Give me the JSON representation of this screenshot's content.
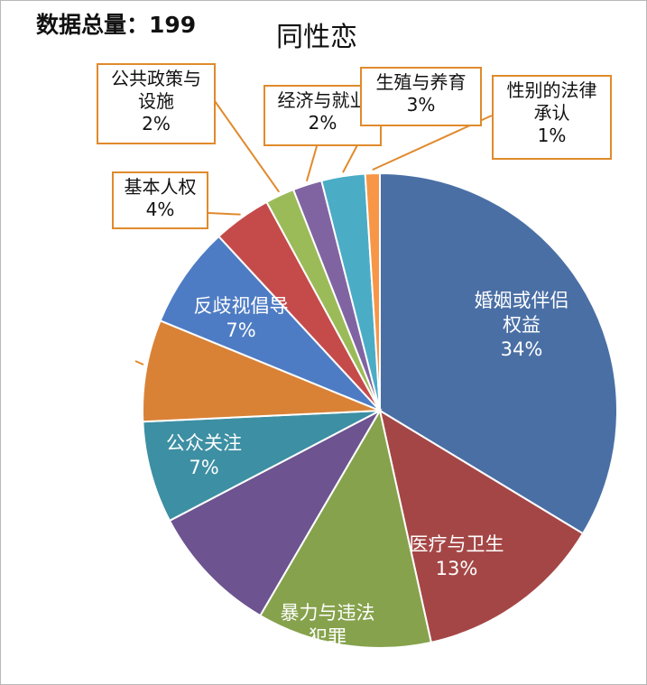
{
  "header": {
    "total": "数据总量：199",
    "title": "同性恋"
  },
  "chart_data": {
    "type": "pie",
    "title": "同性恋",
    "slices": [
      {
        "label": "婚姻或伴侣权益",
        "label_lines": [
          "婚姻或伴侣",
          "权益"
        ],
        "value": 34,
        "pct": "34%",
        "color": "#4a6fa5"
      },
      {
        "label": "医疗与卫生",
        "label_lines": [
          "医疗与卫生"
        ],
        "value": 13,
        "pct": "13%",
        "color": "#a54646"
      },
      {
        "label": "暴力与违法犯罪",
        "label_lines": [
          "暴力与违法",
          "犯罪"
        ],
        "value": 12,
        "pct": "",
        "color": "#86a24c"
      },
      {
        "label": "",
        "label_lines": [],
        "value": 9,
        "pct": "",
        "color": "#6d538f"
      },
      {
        "label": "公众关注",
        "label_lines": [
          "公众关注"
        ],
        "value": 7,
        "pct": "7%",
        "color": "#3d8fa3"
      },
      {
        "label": "",
        "label_lines": [],
        "value": 7,
        "pct": "",
        "color": "#d98236"
      },
      {
        "label": "反歧视倡导",
        "label_lines": [
          "反歧视倡导"
        ],
        "value": 7,
        "pct": "7%",
        "color": "#4e7cc4"
      },
      {
        "label": "基本人权",
        "label_lines": [
          "基本人权"
        ],
        "value": 4,
        "pct": "4%",
        "color": "#c54b4b"
      },
      {
        "label": "公共政策与设施",
        "label_lines": [
          "公共政策与",
          "设施"
        ],
        "value": 2,
        "pct": "2%",
        "color": "#9bbb59"
      },
      {
        "label": "经济与就业",
        "label_lines": [
          "经济与就业"
        ],
        "value": 2,
        "pct": "2%",
        "color": "#8064a2"
      },
      {
        "label": "生殖与养育",
        "label_lines": [
          "生殖与养育"
        ],
        "value": 3,
        "pct": "3%",
        "color": "#4bacc6"
      },
      {
        "label": "性别的法律承认",
        "label_lines": [
          "性别的法律",
          "承认"
        ],
        "value": 1,
        "pct": "1%",
        "color": "#f79646"
      }
    ],
    "legend": "none",
    "leader_color": "#e08a2c"
  }
}
